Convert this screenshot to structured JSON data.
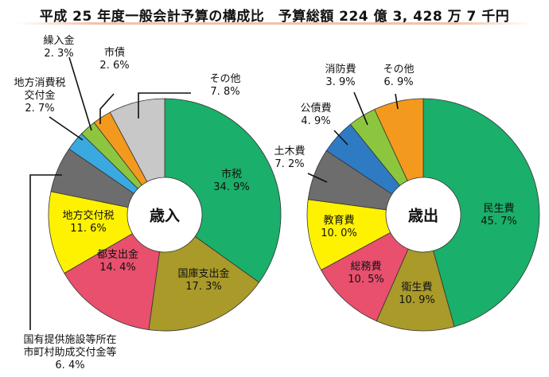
{
  "title": "平成 25 年度一般会計予算の構成比　予算総額 224 億 3, 428 万 7 千円",
  "chart_data": [
    {
      "type": "pie",
      "center_label": "歳入",
      "slices": [
        {
          "label": "市税",
          "value": 34.9,
          "text": "34. 9%",
          "color": "#1aaf6a"
        },
        {
          "label": "国庫支出金",
          "value": 17.3,
          "text": "17. 3%",
          "color": "#a99a2a"
        },
        {
          "label": "都支出金",
          "value": 14.4,
          "text": "14. 4%",
          "color": "#e8506e"
        },
        {
          "label": "地方交付税",
          "value": 11.6,
          "text": "11. 6%",
          "color": "#fff200"
        },
        {
          "label": "国有提供施設等所在市町村助成交付金等",
          "label_lines": [
            "国有提供施設等所在",
            "市町村助成交付金等"
          ],
          "value": 6.4,
          "text": "6. 4%",
          "color": "#6d6d6d"
        },
        {
          "label": "地方消費税交付金",
          "label_lines": [
            "地方消費税",
            "交付金"
          ],
          "value": 2.7,
          "text": "2. 7%",
          "color": "#3aa9e0"
        },
        {
          "label": "繰入金",
          "value": 2.3,
          "text": "2. 3%",
          "color": "#8cc63e"
        },
        {
          "label": "市債",
          "value": 2.6,
          "text": "2. 6%",
          "color": "#f39a1e"
        },
        {
          "label": "その他",
          "value": 7.8,
          "text": "7. 8%",
          "color": "#c8c8c8"
        }
      ]
    },
    {
      "type": "pie",
      "center_label": "歳出",
      "slices": [
        {
          "label": "民生費",
          "value": 45.7,
          "text": "45. 7%",
          "color": "#1aaf6a"
        },
        {
          "label": "衛生費",
          "value": 10.9,
          "text": "10. 9%",
          "color": "#a99a2a"
        },
        {
          "label": "総務費",
          "value": 10.5,
          "text": "10. 5%",
          "color": "#e8506e"
        },
        {
          "label": "教育費",
          "value": 10.0,
          "text": "10. 0%",
          "color": "#fff200"
        },
        {
          "label": "土木費",
          "value": 7.2,
          "text": "7. 2%",
          "color": "#6d6d6d"
        },
        {
          "label": "公債費",
          "value": 4.9,
          "text": "4. 9%",
          "color": "#2e7bc4"
        },
        {
          "label": "消防費",
          "value": 3.9,
          "text": "3. 9%",
          "color": "#8cc63e"
        },
        {
          "label": "その他",
          "value": 6.9,
          "text": "6. 9%",
          "color": "#f39a1e"
        }
      ]
    }
  ]
}
